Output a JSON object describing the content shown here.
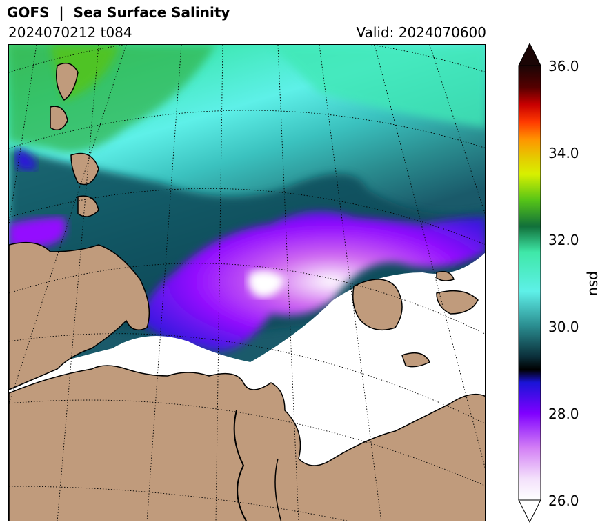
{
  "header": {
    "title": "GOFS  |  Sea Surface Salinity",
    "run": "2024070212 t084",
    "valid": "Valid: 2024070600"
  },
  "colorbar": {
    "label": "psu",
    "ticks": [
      "36.0",
      "34.0",
      "32.0",
      "30.0",
      "28.0",
      "26.0"
    ],
    "range": [
      26.0,
      36.0
    ],
    "extend": "both"
  },
  "colors": {
    "land": "#c09b7c",
    "fresh_white": "#ffffff",
    "violet": "#7f00ff",
    "blue": "#1a14d8",
    "deep_teal": "#0b3d4b",
    "teal": "#2a8c8f",
    "cyan": "#5ef0e8",
    "green": "#3fe8a8",
    "dark_green": "#11703a",
    "lime": "#56c417"
  }
}
